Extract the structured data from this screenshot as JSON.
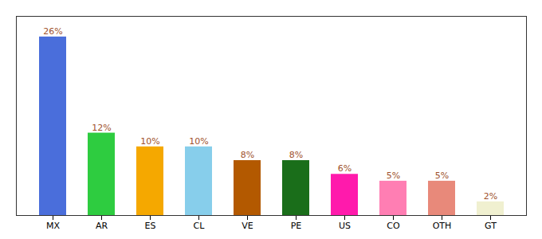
{
  "chart_data": {
    "type": "bar",
    "categories": [
      "MX",
      "AR",
      "ES",
      "CL",
      "VE",
      "PE",
      "US",
      "CO",
      "OTH",
      "GT"
    ],
    "values": [
      26,
      12,
      10,
      10,
      8,
      8,
      6,
      5,
      5,
      2
    ],
    "value_labels": [
      "26%",
      "12%",
      "10%",
      "10%",
      "8%",
      "8%",
      "6%",
      "5%",
      "5%",
      "2%"
    ],
    "colors": [
      "#4a6edb",
      "#2ecc40",
      "#f5a800",
      "#87ceeb",
      "#b35900",
      "#1a6e1a",
      "#ff1aac",
      "#ff7eb3",
      "#e8897a",
      "#f0f0d0"
    ],
    "ylim": [
      0,
      29
    ],
    "data_labels": true,
    "tick_labels": "x",
    "grid": false
  }
}
